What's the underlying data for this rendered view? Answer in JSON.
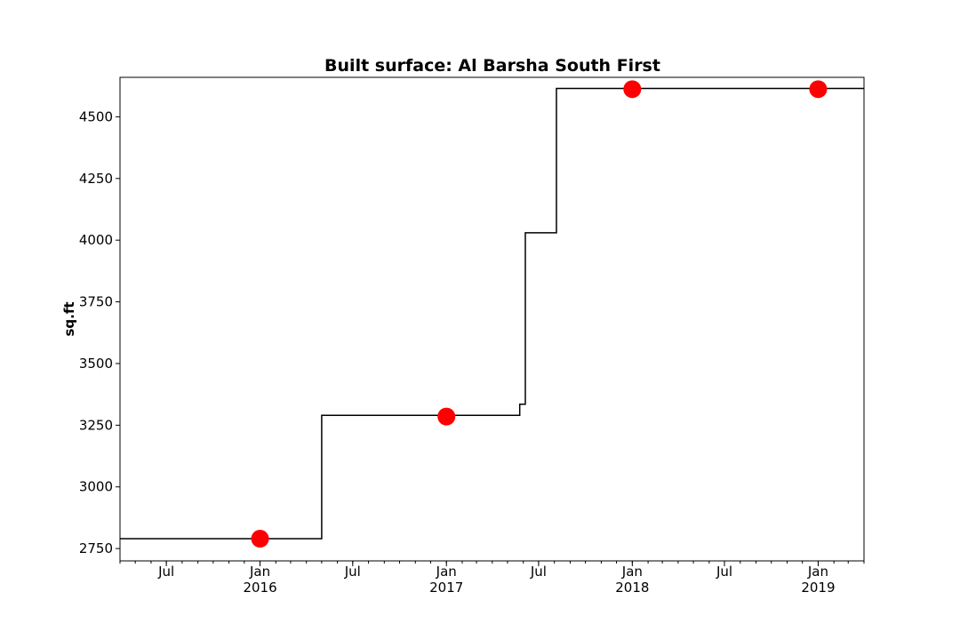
{
  "chart_data": {
    "type": "line",
    "title": "Built surface: Al Barsha South First",
    "xlabel": "",
    "ylabel": "sq.ft",
    "ylim": [
      2700,
      4660
    ],
    "xlim": [
      "2015-04-01",
      "2019-04-01"
    ],
    "yticks": [
      2750,
      3000,
      3250,
      3500,
      3750,
      4000,
      4250,
      4500
    ],
    "xticks": [
      {
        "date": "2015-07-01",
        "label": "Jul",
        "sub": ""
      },
      {
        "date": "2016-01-01",
        "label": "Jan",
        "sub": "2016"
      },
      {
        "date": "2016-07-01",
        "label": "Jul",
        "sub": ""
      },
      {
        "date": "2017-01-01",
        "label": "Jan",
        "sub": "2017"
      },
      {
        "date": "2017-07-01",
        "label": "Jul",
        "sub": ""
      },
      {
        "date": "2018-01-01",
        "label": "Jan",
        "sub": "2018"
      },
      {
        "date": "2018-07-01",
        "label": "Jul",
        "sub": ""
      },
      {
        "date": "2019-01-01",
        "label": "Jan",
        "sub": "2019"
      }
    ],
    "grid": false,
    "series": [
      {
        "style": "step",
        "color": "#000000",
        "points": [
          {
            "x": "2015-04-01",
            "y": 2790
          },
          {
            "x": "2016-05-01",
            "y": 2790
          },
          {
            "x": "2016-05-01",
            "y": 3290
          },
          {
            "x": "2017-05-25",
            "y": 3290
          },
          {
            "x": "2017-05-25",
            "y": 3335
          },
          {
            "x": "2017-06-05",
            "y": 3335
          },
          {
            "x": "2017-06-05",
            "y": 4030
          },
          {
            "x": "2017-08-05",
            "y": 4030
          },
          {
            "x": "2017-08-05",
            "y": 4615
          },
          {
            "x": "2019-04-01",
            "y": 4615
          }
        ]
      },
      {
        "style": "markers",
        "color": "#ff0000",
        "points": [
          {
            "x": "2016-01-01",
            "y": 2790
          },
          {
            "x": "2017-01-01",
            "y": 3285
          },
          {
            "x": "2018-01-01",
            "y": 4612
          },
          {
            "x": "2019-01-01",
            "y": 4612
          }
        ]
      }
    ]
  }
}
